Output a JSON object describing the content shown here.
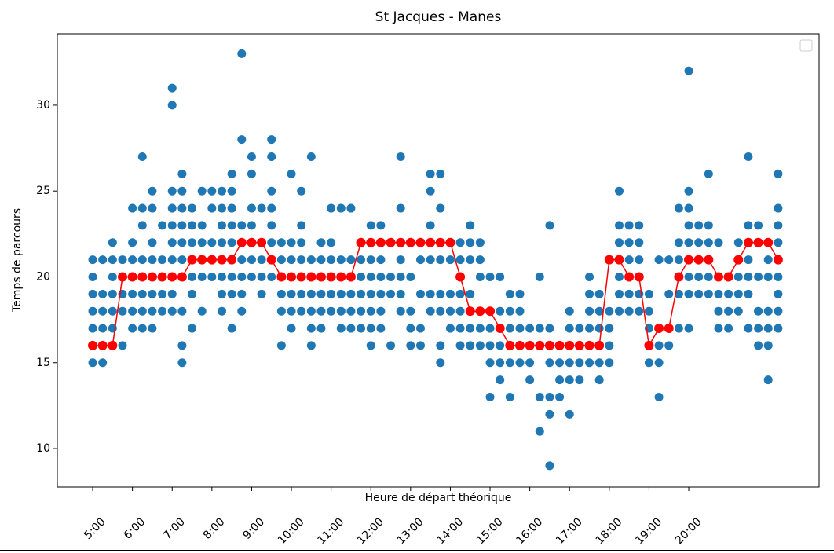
{
  "chart_data": {
    "type": "scatter",
    "title": "St Jacques - Manes",
    "xlabel": "Heure de départ théorique",
    "ylabel": "Temps de parcours",
    "x": [
      5,
      5.25,
      5.5,
      5.75,
      6,
      6.25,
      6.5,
      6.75,
      7,
      7.25,
      7.5,
      7.75,
      8,
      8.25,
      8.5,
      8.75,
      9,
      9.25,
      9.5,
      9.75,
      10,
      10.25,
      10.5,
      10.75,
      11,
      11.25,
      11.5,
      11.75,
      12,
      12.25,
      12.5,
      12.75,
      13,
      13.25,
      13.5,
      13.75,
      14,
      14.25,
      14.5,
      14.75,
      15,
      15.25,
      15.5,
      15.75,
      16,
      16.25,
      16.5,
      16.75,
      17,
      17.25,
      17.5,
      17.75,
      18,
      18.25,
      18.5,
      18.75,
      19,
      19.25,
      19.5,
      19.75,
      20,
      20.25,
      20.5,
      20.75,
      21,
      21.25,
      21.5,
      21.75,
      22,
      22.25
    ],
    "series": [
      {
        "type": "scatter",
        "color": "#1f77b4",
        "values": [
          [
            15,
            16,
            17,
            18,
            19,
            20,
            21
          ],
          [
            15,
            16,
            17,
            18,
            19,
            21
          ],
          [
            16,
            17,
            18,
            19,
            20,
            21,
            22
          ],
          [
            16,
            18,
            19,
            20,
            21
          ],
          [
            17,
            18,
            19,
            20,
            21,
            22,
            24
          ],
          [
            17,
            18,
            19,
            20,
            21,
            23,
            24,
            27
          ],
          [
            17,
            18,
            19,
            20,
            21,
            22,
            24,
            25
          ],
          [
            18,
            19,
            20,
            21,
            23
          ],
          [
            18,
            19,
            20,
            21,
            22,
            23,
            24,
            25,
            30,
            31
          ],
          [
            15,
            16,
            18,
            20,
            21,
            22,
            23,
            24,
            25,
            26
          ],
          [
            17,
            19,
            20,
            21,
            22,
            23,
            24
          ],
          [
            18,
            20,
            21,
            22,
            23,
            25
          ],
          [
            20,
            21,
            22,
            24,
            25
          ],
          [
            18,
            19,
            20,
            21,
            22,
            23,
            24,
            25
          ],
          [
            17,
            19,
            20,
            21,
            22,
            23,
            24,
            25,
            26
          ],
          [
            18,
            19,
            20,
            21,
            22,
            23,
            28,
            33
          ],
          [
            20,
            21,
            22,
            23,
            24,
            26,
            27
          ],
          [
            19,
            20,
            21,
            22,
            24
          ],
          [
            20,
            21,
            22,
            23,
            24,
            25,
            27,
            28
          ],
          [
            16,
            18,
            19,
            20,
            21,
            22
          ],
          [
            17,
            18,
            19,
            20,
            21,
            22,
            26
          ],
          [
            18,
            19,
            20,
            21,
            22,
            23,
            25
          ],
          [
            16,
            17,
            18,
            19,
            20,
            21,
            27
          ],
          [
            17,
            18,
            19,
            20,
            21,
            22
          ],
          [
            18,
            19,
            20,
            21,
            22,
            24
          ],
          [
            17,
            18,
            19,
            20,
            21,
            24
          ],
          [
            17,
            18,
            19,
            20,
            21,
            24
          ],
          [
            17,
            18,
            19,
            20,
            21,
            22
          ],
          [
            16,
            17,
            18,
            19,
            20,
            21,
            22,
            23
          ],
          [
            17,
            18,
            19,
            20,
            21,
            22,
            23
          ],
          [
            16,
            19,
            20,
            22
          ],
          [
            18,
            19,
            20,
            21,
            22,
            24,
            27
          ],
          [
            16,
            17,
            18,
            20,
            22
          ],
          [
            16,
            17,
            19,
            21,
            22
          ],
          [
            18,
            19,
            21,
            22,
            23,
            25,
            26
          ],
          [
            15,
            16,
            18,
            19,
            21,
            22,
            24,
            26
          ],
          [
            17,
            18,
            19,
            21,
            22
          ],
          [
            16,
            17,
            18,
            19,
            21,
            22
          ],
          [
            16,
            17,
            18,
            19,
            21,
            22,
            23
          ],
          [
            16,
            17,
            18,
            20,
            21,
            22
          ],
          [
            13,
            15,
            16,
            17,
            18,
            20
          ],
          [
            14,
            15,
            16,
            17,
            18,
            20
          ],
          [
            13,
            15,
            16,
            17,
            18,
            19
          ],
          [
            15,
            16,
            17,
            18,
            19
          ],
          [
            14,
            15,
            16,
            17
          ],
          [
            11,
            13,
            16,
            17,
            20
          ],
          [
            9,
            12,
            13,
            15,
            16,
            17,
            23
          ],
          [
            13,
            14,
            15,
            16
          ],
          [
            12,
            14,
            15,
            16,
            17,
            18
          ],
          [
            14,
            15,
            16,
            17
          ],
          [
            15,
            16,
            17,
            18,
            19,
            20
          ],
          [
            14,
            15,
            16,
            17,
            18,
            19
          ],
          [
            15,
            16,
            17,
            18
          ],
          [
            18,
            19,
            20,
            21,
            22,
            23,
            25
          ],
          [
            18,
            19,
            20,
            21,
            22,
            23
          ],
          [
            18,
            19,
            20,
            21,
            22,
            23
          ],
          [
            15,
            16,
            17,
            18,
            19
          ],
          [
            13,
            15,
            16,
            17,
            21
          ],
          [
            16,
            17,
            19,
            21
          ],
          [
            17,
            19,
            20,
            21,
            22,
            24
          ],
          [
            17,
            19,
            20,
            21,
            22,
            23,
            24,
            25,
            32
          ],
          [
            19,
            20,
            21,
            22,
            23
          ],
          [
            19,
            20,
            21,
            22,
            23,
            26
          ],
          [
            17,
            18,
            19,
            20,
            22
          ],
          [
            17,
            18,
            19,
            20
          ],
          [
            18,
            19,
            20,
            21,
            22
          ],
          [
            17,
            19,
            20,
            21,
            22,
            23,
            27
          ],
          [
            16,
            17,
            18,
            20,
            22,
            23
          ],
          [
            14,
            16,
            17,
            18,
            20,
            21,
            22
          ],
          [
            17,
            18,
            19,
            20,
            21,
            22,
            23,
            24,
            26
          ]
        ]
      },
      {
        "type": "line",
        "color": "#ff0000",
        "values": [
          16,
          16,
          16,
          20,
          20,
          20,
          20,
          20,
          20,
          20,
          21,
          21,
          21,
          21,
          21,
          22,
          22,
          22,
          21,
          20,
          20,
          20,
          20,
          20,
          20,
          20,
          20,
          22,
          22,
          22,
          22,
          22,
          22,
          22,
          22,
          22,
          22,
          20,
          18,
          18,
          18,
          17,
          16,
          16,
          16,
          16,
          16,
          16,
          16,
          16,
          16,
          16,
          21,
          21,
          20,
          20,
          16,
          17,
          17,
          20,
          21,
          21,
          21,
          20,
          20,
          21,
          22,
          22,
          22,
          21
        ]
      }
    ],
    "xlim": [
      4.11,
      23.28
    ],
    "ylim": [
      7.76,
      34.16
    ],
    "xticks": [
      {
        "value": 5,
        "label": "5:00"
      },
      {
        "value": 6,
        "label": "6:00"
      },
      {
        "value": 7,
        "label": "7:00"
      },
      {
        "value": 8,
        "label": "8:00"
      },
      {
        "value": 9,
        "label": "9:00"
      },
      {
        "value": 10,
        "label": "10:00"
      },
      {
        "value": 11,
        "label": "11:00"
      },
      {
        "value": 12,
        "label": "12:00"
      },
      {
        "value": 13,
        "label": "13:00"
      },
      {
        "value": 14,
        "label": "14:00"
      },
      {
        "value": 15,
        "label": "15:00"
      },
      {
        "value": 16,
        "label": "16:00"
      },
      {
        "value": 17,
        "label": "17:00"
      },
      {
        "value": 18,
        "label": "18:00"
      },
      {
        "value": 19,
        "label": "19:00"
      },
      {
        "value": 20,
        "label": "20:00"
      }
    ],
    "yticks": [
      10,
      15,
      20,
      25,
      30
    ]
  }
}
